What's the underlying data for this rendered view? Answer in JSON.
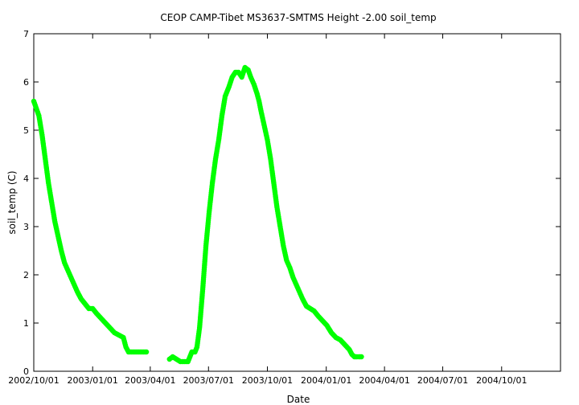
{
  "chart_data": {
    "type": "scatter",
    "title": "CEOP CAMP-Tibet MS3637-SMTMS Height -2.00 soil_temp",
    "xlabel": "Date",
    "ylabel": "soil_temp (C)",
    "xlim": [
      "2002-10-01",
      "2005-01-01"
    ],
    "ylim": [
      0,
      7
    ],
    "x_ticks": [
      "2002/10/01",
      "2003/01/01",
      "2003/04/01",
      "2003/07/01",
      "2003/10/01",
      "2004/01/01",
      "2004/04/01",
      "2004/07/01",
      "2004/10/01"
    ],
    "y_ticks": [
      0,
      1,
      2,
      3,
      4,
      5,
      6,
      7
    ],
    "grid": false,
    "marker_color": "#00ff00",
    "series": [
      {
        "x": [
          "2002-10-01",
          "2002-10-05",
          "2002-10-09",
          "2002-10-14",
          "2002-10-19",
          "2002-10-24",
          "2002-10-29",
          "2002-11-03",
          "2002-11-08",
          "2002-11-13",
          "2002-11-18",
          "2002-11-23",
          "2002-11-28",
          "2002-12-03",
          "2002-12-08",
          "2002-12-14",
          "2002-12-20",
          "2002-12-26",
          "2003-01-01",
          "2003-01-07",
          "2003-01-14",
          "2003-01-21",
          "2003-01-28",
          "2003-02-04",
          "2003-02-11",
          "2003-02-18",
          "2003-02-22",
          "2003-02-26",
          "2003-03-05",
          "2003-03-12",
          "2003-03-19",
          "2003-03-26",
          "2003-05-01",
          "2003-05-06",
          "2003-05-12",
          "2003-05-18",
          "2003-05-24",
          "2003-05-30",
          "2003-06-05",
          "2003-06-10",
          "2003-06-13",
          "2003-06-17",
          "2003-06-22",
          "2003-06-27",
          "2003-07-02",
          "2003-07-07",
          "2003-07-12",
          "2003-07-17",
          "2003-07-22",
          "2003-07-27",
          "2003-08-02",
          "2003-08-07",
          "2003-08-12",
          "2003-08-17",
          "2003-08-22",
          "2003-08-27",
          "2003-09-01",
          "2003-09-05",
          "2003-09-10",
          "2003-09-15",
          "2003-09-18",
          "2003-09-21",
          "2003-09-26",
          "2003-10-01",
          "2003-10-06",
          "2003-10-11",
          "2003-10-16",
          "2003-10-21",
          "2003-10-26",
          "2003-10-31",
          "2003-11-05",
          "2003-11-10",
          "2003-11-15",
          "2003-11-20",
          "2003-11-25",
          "2003-12-01",
          "2003-12-07",
          "2003-12-13",
          "2003-12-19",
          "2003-12-26",
          "2004-01-02",
          "2004-01-09",
          "2004-01-16",
          "2004-01-23",
          "2004-01-30",
          "2004-02-06",
          "2004-02-10",
          "2004-02-14",
          "2004-02-18",
          "2004-02-21",
          "2004-02-23",
          "2004-02-25"
        ],
        "y": [
          5.6,
          5.45,
          5.3,
          4.9,
          4.4,
          3.9,
          3.5,
          3.1,
          2.8,
          2.5,
          2.25,
          2.1,
          1.95,
          1.8,
          1.65,
          1.5,
          1.4,
          1.3,
          1.3,
          1.2,
          1.1,
          1.0,
          0.9,
          0.8,
          0.75,
          0.7,
          0.5,
          0.4,
          0.4,
          0.4,
          0.4,
          0.4,
          0.25,
          0.3,
          0.25,
          0.2,
          0.2,
          0.2,
          0.4,
          0.4,
          0.5,
          0.9,
          1.7,
          2.6,
          3.3,
          3.9,
          4.4,
          4.8,
          5.3,
          5.7,
          5.9,
          6.1,
          6.2,
          6.2,
          6.1,
          6.3,
          6.25,
          6.1,
          5.95,
          5.75,
          5.6,
          5.4,
          5.1,
          4.8,
          4.4,
          3.9,
          3.4,
          3.0,
          2.6,
          2.3,
          2.15,
          1.95,
          1.8,
          1.65,
          1.5,
          1.35,
          1.3,
          1.25,
          1.15,
          1.05,
          0.95,
          0.8,
          0.7,
          0.65,
          0.55,
          0.45,
          0.35,
          0.3,
          0.3,
          0.3,
          0.3,
          0.3
        ]
      }
    ]
  }
}
